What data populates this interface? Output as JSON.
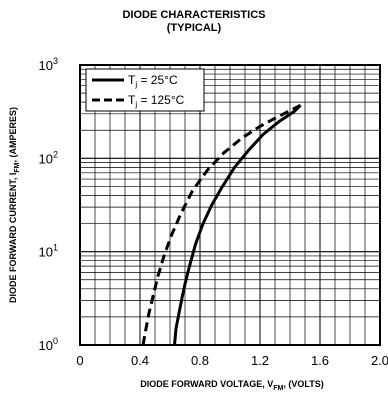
{
  "chart_data": {
    "type": "line",
    "title": "DIODE CHARACTERISTICS",
    "subtitle": "(TYPICAL)",
    "xlabel": {
      "prefix": "DIODE FORWARD VOLTAGE, V",
      "subscript": "FM",
      "suffix": ", (VOLTS)"
    },
    "ylabel": {
      "prefix": "DIODE FORWARD CURRENT, I",
      "subscript": "FM",
      "suffix": ", (AMPERES)"
    },
    "xlim": [
      0,
      2.0
    ],
    "ylim": [
      1,
      1000
    ],
    "yscale": "log",
    "grid": true,
    "legend_position": "top-left",
    "x_ticks": [
      {
        "value": 0,
        "label": "0"
      },
      {
        "value": 0.4,
        "label": "0.4"
      },
      {
        "value": 0.8,
        "label": "0.8"
      },
      {
        "value": 1.2,
        "label": "1.2"
      },
      {
        "value": 1.6,
        "label": "1.6"
      },
      {
        "value": 2.0,
        "label": "2.0"
      }
    ],
    "y_ticks": [
      {
        "value": 1,
        "base": "10",
        "exp": "0"
      },
      {
        "value": 10,
        "base": "10",
        "exp": "1"
      },
      {
        "value": 100,
        "base": "10",
        "exp": "2"
      },
      {
        "value": 1000,
        "base": "10",
        "exp": "3"
      }
    ],
    "series": [
      {
        "legend_main": "T",
        "legend_sub": "j",
        "legend_rest": " = 25°C",
        "dash": "solid",
        "points": [
          [
            0.63,
            1.0
          ],
          [
            0.64,
            1.5
          ],
          [
            0.66,
            2.2
          ],
          [
            0.68,
            3.2
          ],
          [
            0.7,
            4.5
          ],
          [
            0.73,
            7.0
          ],
          [
            0.77,
            12
          ],
          [
            0.82,
            20
          ],
          [
            0.88,
            32
          ],
          [
            0.95,
            50
          ],
          [
            1.03,
            80
          ],
          [
            1.12,
            120
          ],
          [
            1.22,
            180
          ],
          [
            1.33,
            250
          ],
          [
            1.43,
            320
          ],
          [
            1.47,
            370
          ]
        ]
      },
      {
        "legend_main": "T",
        "legend_sub": "j",
        "legend_rest": " = 125°C",
        "dash": "dashed",
        "points": [
          [
            0.42,
            1.0
          ],
          [
            0.44,
            1.5
          ],
          [
            0.46,
            2.2
          ],
          [
            0.49,
            3.5
          ],
          [
            0.52,
            5.5
          ],
          [
            0.56,
            9
          ],
          [
            0.61,
            15
          ],
          [
            0.67,
            25
          ],
          [
            0.75,
            45
          ],
          [
            0.85,
            75
          ],
          [
            0.96,
            115
          ],
          [
            1.08,
            165
          ],
          [
            1.2,
            220
          ],
          [
            1.32,
            280
          ],
          [
            1.41,
            330
          ],
          [
            1.47,
            370
          ]
        ]
      }
    ]
  }
}
